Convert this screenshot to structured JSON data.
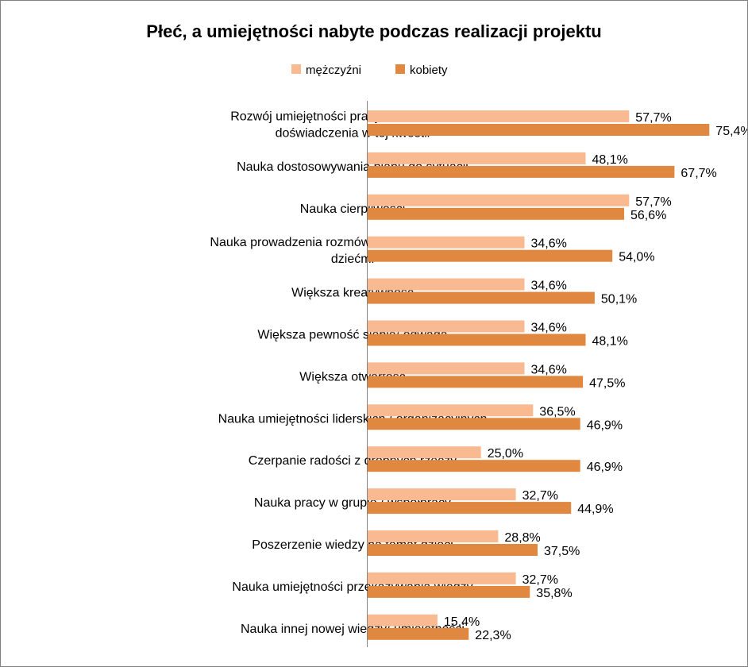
{
  "chart_data": {
    "type": "bar",
    "orientation": "horizontal",
    "title": "Płeć, a umiejętności nabyte podczas realizacji projektu",
    "legend_position": "top",
    "xlim": [
      0,
      80
    ],
    "grid": false,
    "categories": [
      [
        "Rozwój umiejętności pracy z dziećmi/ nowe",
        "doświadczenia w tej kwestii"
      ],
      [
        "Nauka dostosowywania planu do sytuacji"
      ],
      [
        "Nauka cierpliwości"
      ],
      [
        "Nauka prowadzenia rozmów z dziećmi / kontaktu z",
        "dziećmi"
      ],
      [
        "Większa kreatywność"
      ],
      [
        "Większa pewność siebie/ odwaga"
      ],
      [
        "Większa otwartość"
      ],
      [
        "Nauka umiejętności liderskich / organizacyjnych"
      ],
      [
        "Czerpanie radości z drobnych rzeczy"
      ],
      [
        "Nauka pracy w grupie / współpracy"
      ],
      [
        "Poszerzenie wiedzy na temat dzieci"
      ],
      [
        "Nauka umiejętności przekazywania wiedzy"
      ],
      [
        "Nauka innej nowej wiedzy/ umiejętności"
      ]
    ],
    "series": [
      {
        "name": "mężczyźni",
        "color": "#F9B991",
        "values": [
          57.7,
          48.1,
          57.7,
          34.6,
          34.6,
          34.6,
          34.6,
          36.5,
          25.0,
          32.7,
          28.8,
          32.7,
          15.4
        ],
        "labels": [
          "57,7%",
          "48,1%",
          "57,7%",
          "34,6%",
          "34,6%",
          "34,6%",
          "34,6%",
          "36,5%",
          "25,0%",
          "32,7%",
          "28,8%",
          "32,7%",
          "15,4%"
        ]
      },
      {
        "name": "kobiety",
        "color": "#E0883F",
        "values": [
          75.4,
          67.7,
          56.6,
          54.0,
          50.1,
          48.1,
          47.5,
          46.9,
          46.9,
          44.9,
          37.5,
          35.8,
          22.3
        ],
        "labels": [
          "75,4%",
          "67,7%",
          "56,6%",
          "54,0%",
          "50,1%",
          "48,1%",
          "47,5%",
          "46,9%",
          "46,9%",
          "44,9%",
          "37,5%",
          "35,8%",
          "22,3%"
        ]
      }
    ]
  }
}
